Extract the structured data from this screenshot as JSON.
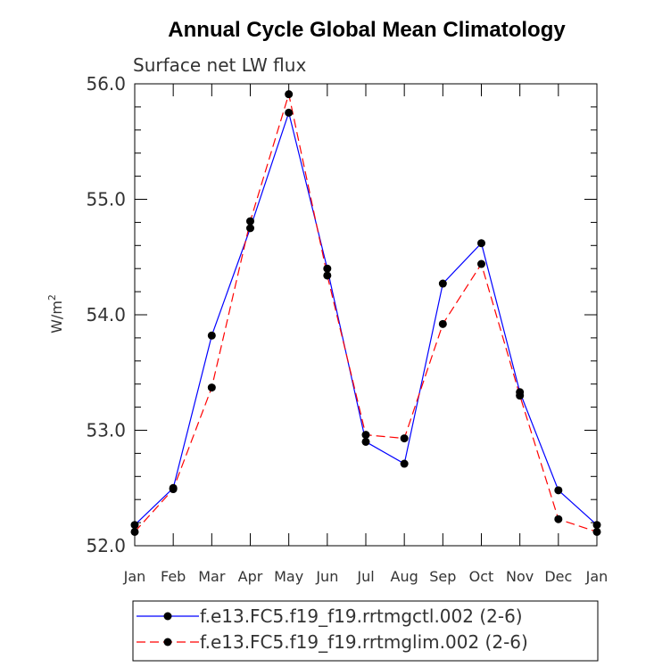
{
  "chart_data": {
    "type": "line",
    "title": "Annual Cycle Global Mean Climatology",
    "subtitle": "Surface net LW flux",
    "ylabel_base": "W/m",
    "ylabel_sup": "2",
    "xlabel": "",
    "categories": [
      "Jan",
      "Feb",
      "Mar",
      "Apr",
      "May",
      "Jun",
      "Jul",
      "Aug",
      "Sep",
      "Oct",
      "Nov",
      "Dec",
      "Jan"
    ],
    "ylim": [
      52.0,
      56.0
    ],
    "yticks": [
      52.0,
      53.0,
      54.0,
      55.0,
      56.0
    ],
    "ytick_labels": [
      "52.0",
      "53.0",
      "54.0",
      "55.0",
      "56.0"
    ],
    "series": [
      {
        "name": "f.e13.FC5.f19_f19.rrtmgctl.002 (2-6)",
        "color": "#0000ff",
        "dash": "solid",
        "values": [
          52.18,
          52.5,
          53.82,
          54.75,
          55.75,
          54.4,
          52.9,
          52.71,
          54.27,
          54.62,
          53.33,
          52.48,
          52.18
        ]
      },
      {
        "name": "f.e13.FC5.f19_f19.rrtmglim.002 (2-6)",
        "color": "#ff0000",
        "dash": "dashed",
        "values": [
          52.12,
          52.49,
          53.37,
          54.81,
          55.91,
          54.34,
          52.96,
          52.93,
          53.92,
          54.44,
          53.3,
          52.23,
          52.12
        ]
      }
    ],
    "legend_position": "bottom"
  }
}
